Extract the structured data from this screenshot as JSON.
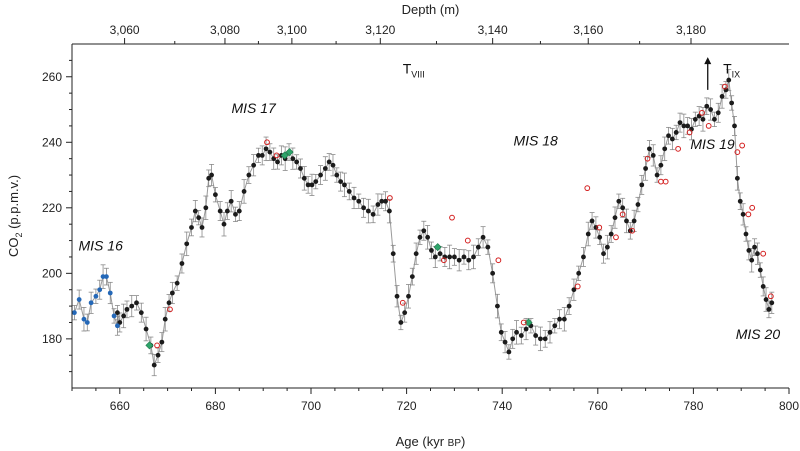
{
  "chart_data": {
    "type": "scatter",
    "title": "",
    "xlabel": "Age (kyr BP)",
    "xlabel_main": "Age (kyr ",
    "xlabel_bp": "BP",
    "xlabel_close": ")",
    "ylabel": "CO2 (p.p.m.v.)",
    "ylabel_pre": "CO",
    "ylabel_sub": "2",
    "ylabel_post": " (p.p.m.v.)",
    "top_xlabel": "Depth (m)",
    "xlim": [
      650,
      800
    ],
    "ylim": [
      165,
      270
    ],
    "x_ticks": [
      "660",
      "680",
      "700",
      "720",
      "740",
      "760",
      "780",
      "800"
    ],
    "y_ticks": [
      "180",
      "200",
      "220",
      "240",
      "260"
    ],
    "top_ticks": [
      {
        "age": 661.0,
        "label": "3,060"
      },
      {
        "age": 682.0,
        "label": "3,080"
      },
      {
        "age": 696.0,
        "label": "3,100"
      },
      {
        "age": 714.5,
        "label": "3,120"
      },
      {
        "age": 738.0,
        "label": "3,140"
      },
      {
        "age": 758.0,
        "label": "3,160"
      },
      {
        "age": 779.5,
        "label": "3,180"
      }
    ],
    "annotations": [
      {
        "label": "MIS 16",
        "x": 656.0,
        "y": 207.0
      },
      {
        "label": "MIS 17",
        "x": 688.0,
        "y": 249.0
      },
      {
        "label": "MIS 18",
        "x": 747.0,
        "y": 239.0
      },
      {
        "label": "MIS 19",
        "x": 784.0,
        "y": 238.0
      },
      {
        "label": "MIS 20",
        "x": 793.5,
        "y": 180.0
      }
    ],
    "terminations": [
      {
        "label": "T",
        "sub": "VIII",
        "x": 721.5,
        "y": 261.0
      },
      {
        "label": "T",
        "sub": "IX",
        "x": 788.0,
        "y": 261.0
      }
    ],
    "arrow": {
      "x": 783.0,
      "y_from": 256.0,
      "y_to": 266.0
    },
    "series": [
      {
        "name": "",
        "color": "#1b1b1b",
        "line_color": "#8c8c8c",
        "points": [
          [
            659.5,
            188
          ],
          [
            660,
            185
          ],
          [
            660.8,
            187
          ],
          [
            661.5,
            189
          ],
          [
            662.5,
            190
          ],
          [
            663.5,
            191
          ],
          [
            664.5,
            188
          ],
          [
            665.5,
            183
          ],
          [
            666.5,
            178
          ],
          [
            667.2,
            172
          ],
          [
            668,
            175
          ],
          [
            668.8,
            179
          ],
          [
            669.5,
            186
          ],
          [
            670.3,
            191
          ],
          [
            671,
            194
          ],
          [
            672,
            197
          ],
          [
            673,
            203
          ],
          [
            674,
            209
          ],
          [
            675,
            214
          ],
          [
            675.8,
            219
          ],
          [
            676.5,
            217
          ],
          [
            677.2,
            214
          ],
          [
            678,
            220
          ],
          [
            678.6,
            229
          ],
          [
            679.2,
            230
          ],
          [
            680,
            224
          ],
          [
            681,
            219
          ],
          [
            681.8,
            215
          ],
          [
            682.5,
            219
          ],
          [
            683.3,
            222
          ],
          [
            684.2,
            218
          ],
          [
            685,
            219
          ],
          [
            686,
            225
          ],
          [
            687,
            230
          ],
          [
            688,
            233
          ],
          [
            689,
            236
          ],
          [
            689.8,
            236
          ],
          [
            690.6,
            238
          ],
          [
            691.4,
            237
          ],
          [
            692.2,
            235
          ],
          [
            693,
            234
          ],
          [
            693.8,
            236
          ],
          [
            694.6,
            235
          ],
          [
            695.4,
            237
          ],
          [
            696.2,
            235
          ],
          [
            697,
            234
          ],
          [
            697.8,
            232
          ],
          [
            698.6,
            229
          ],
          [
            699.4,
            227
          ],
          [
            700.2,
            227
          ],
          [
            701,
            228
          ],
          [
            702,
            230
          ],
          [
            703,
            232
          ],
          [
            703.8,
            234
          ],
          [
            704.6,
            233
          ],
          [
            705.4,
            230
          ],
          [
            706.2,
            228
          ],
          [
            707,
            227
          ],
          [
            708,
            225
          ],
          [
            709,
            223
          ],
          [
            710,
            222
          ],
          [
            711,
            220
          ],
          [
            712,
            219
          ],
          [
            713,
            218
          ],
          [
            714,
            221
          ],
          [
            714.8,
            222
          ],
          [
            715.6,
            222
          ],
          [
            716.4,
            219
          ],
          [
            717.2,
            206
          ],
          [
            718,
            193
          ],
          [
            718.8,
            185
          ],
          [
            719.6,
            188
          ],
          [
            720.4,
            193
          ],
          [
            721.2,
            199
          ],
          [
            722,
            206
          ],
          [
            722.8,
            211
          ],
          [
            723.6,
            213
          ],
          [
            724.4,
            211
          ],
          [
            725.2,
            207
          ],
          [
            726,
            205
          ],
          [
            727,
            206
          ],
          [
            728,
            205
          ],
          [
            729,
            205
          ],
          [
            730,
            205
          ],
          [
            731,
            204
          ],
          [
            732,
            205
          ],
          [
            733,
            204
          ],
          [
            734,
            205
          ],
          [
            735,
            208
          ],
          [
            736,
            211
          ],
          [
            737,
            208
          ],
          [
            738,
            200
          ],
          [
            739,
            190
          ],
          [
            739.8,
            182
          ],
          [
            740.6,
            179
          ],
          [
            741.4,
            176
          ],
          [
            742.2,
            180
          ],
          [
            743,
            182
          ],
          [
            744,
            181
          ],
          [
            745,
            183
          ],
          [
            746,
            184
          ],
          [
            747,
            181
          ],
          [
            748,
            180
          ],
          [
            749,
            180
          ],
          [
            750,
            182
          ],
          [
            751,
            184
          ],
          [
            752,
            186
          ],
          [
            753,
            186
          ],
          [
            754,
            190
          ],
          [
            755,
            195
          ],
          [
            756,
            200
          ],
          [
            757,
            205
          ],
          [
            758,
            212
          ],
          [
            758.8,
            216
          ],
          [
            759.6,
            214
          ],
          [
            760.4,
            211
          ],
          [
            761.2,
            206
          ],
          [
            762,
            208
          ],
          [
            762.8,
            212
          ],
          [
            763.6,
            217
          ],
          [
            764.4,
            222
          ],
          [
            765.2,
            220
          ],
          [
            766,
            216
          ],
          [
            766.8,
            213
          ],
          [
            767.6,
            216
          ],
          [
            768.4,
            221
          ],
          [
            769.2,
            227
          ],
          [
            770,
            232
          ],
          [
            770.8,
            238
          ],
          [
            771.6,
            236
          ],
          [
            772.4,
            230
          ],
          [
            773.2,
            233
          ],
          [
            774,
            238
          ],
          [
            774.8,
            242
          ],
          [
            775.6,
            241
          ],
          [
            776.4,
            243
          ],
          [
            777.2,
            246
          ],
          [
            778,
            245
          ],
          [
            778.8,
            245
          ],
          [
            779.6,
            244
          ],
          [
            780.4,
            247
          ],
          [
            781.2,
            248
          ],
          [
            782,
            247
          ],
          [
            782.8,
            251
          ],
          [
            783.6,
            250
          ],
          [
            784.4,
            247
          ],
          [
            785.2,
            249
          ],
          [
            786,
            254
          ],
          [
            786.8,
            256
          ],
          [
            787.4,
            259
          ],
          [
            788,
            252
          ],
          [
            788.6,
            245
          ],
          [
            789.2,
            229
          ],
          [
            789.8,
            222
          ],
          [
            790.4,
            218
          ],
          [
            791,
            212
          ],
          [
            791.6,
            207
          ],
          [
            792.2,
            204
          ],
          [
            792.8,
            208
          ],
          [
            793.4,
            206
          ],
          [
            794,
            201
          ],
          [
            794.6,
            196
          ],
          [
            795.2,
            192
          ],
          [
            795.8,
            189
          ],
          [
            796.4,
            191
          ]
        ]
      },
      {
        "name": "",
        "color": "#2468b8",
        "line_color": "#8c8c8c",
        "points": [
          [
            650.5,
            188
          ],
          [
            651.5,
            192
          ],
          [
            652.5,
            186
          ],
          [
            653.2,
            185
          ],
          [
            654,
            191
          ],
          [
            655,
            193
          ],
          [
            655.8,
            195
          ],
          [
            656.5,
            199
          ],
          [
            657.2,
            199
          ],
          [
            658,
            194
          ],
          [
            658.8,
            187
          ],
          [
            659.5,
            184
          ]
        ]
      },
      {
        "name": "",
        "color": "#2ea46a",
        "line_color": "",
        "points": [
          [
            666.2,
            178
          ],
          [
            694.5,
            236
          ],
          [
            695.5,
            237
          ],
          [
            726.5,
            208
          ],
          [
            745.5,
            185
          ]
        ]
      },
      {
        "name": "",
        "color": "#d42020",
        "hollow": true,
        "points": [
          [
            667.8,
            178
          ],
          [
            670.5,
            189
          ],
          [
            690.8,
            240
          ],
          [
            692.8,
            236
          ],
          [
            716.5,
            223
          ],
          [
            719.2,
            191
          ],
          [
            727.8,
            204
          ],
          [
            729.5,
            217
          ],
          [
            732.8,
            210
          ],
          [
            739.2,
            204
          ],
          [
            744.5,
            185
          ],
          [
            755.8,
            196
          ],
          [
            757.8,
            226
          ],
          [
            760.3,
            214
          ],
          [
            763.8,
            211
          ],
          [
            765.2,
            218
          ],
          [
            767.2,
            213
          ],
          [
            770.4,
            235
          ],
          [
            773.2,
            228
          ],
          [
            774.2,
            228
          ],
          [
            776.8,
            238
          ],
          [
            779.2,
            243
          ],
          [
            781.8,
            249
          ],
          [
            783.2,
            245
          ],
          [
            786.6,
            257
          ],
          [
            789.2,
            237
          ],
          [
            790.2,
            239
          ],
          [
            791.5,
            218
          ],
          [
            792.3,
            220
          ],
          [
            794.6,
            206
          ],
          [
            796.2,
            193
          ]
        ]
      }
    ],
    "grid": false,
    "legend": "none"
  }
}
